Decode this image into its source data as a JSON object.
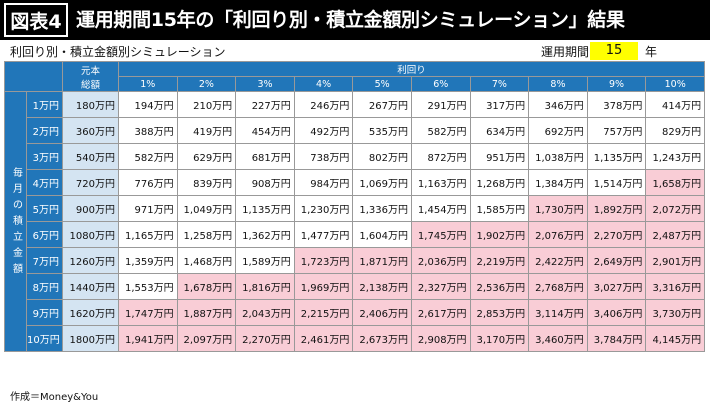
{
  "header": {
    "figure_label": "図表4",
    "title": "運用期間15年の「利回り別・積立金額別シミュレーション」結果"
  },
  "subtitle": "利回り別・積立金額別シミュレーション",
  "period": {
    "label": "運用期間",
    "value": "15",
    "unit": "年"
  },
  "table": {
    "principal_header": "元本総額",
    "principal_header_line1": "元本",
    "principal_header_line2": "総額",
    "rate_group_header": "利回り",
    "side_label": "毎月の積立金額",
    "side_label_chars": [
      "毎",
      "月",
      "の",
      "積",
      "立",
      "金",
      "額"
    ],
    "rates": [
      "1%",
      "2%",
      "3%",
      "4%",
      "5%",
      "6%",
      "7%",
      "8%",
      "9%",
      "10%"
    ],
    "highlight_color": "#f9cdd6",
    "header_color": "#2176b9",
    "rows": [
      {
        "monthly": "1万円",
        "principal": "180万円",
        "values": [
          "194万円",
          "210万円",
          "227万円",
          "246万円",
          "267万円",
          "291万円",
          "317万円",
          "346万円",
          "378万円",
          "414万円"
        ],
        "highlighted": [
          false,
          false,
          false,
          false,
          false,
          false,
          false,
          false,
          false,
          false
        ]
      },
      {
        "monthly": "2万円",
        "principal": "360万円",
        "values": [
          "388万円",
          "419万円",
          "454万円",
          "492万円",
          "535万円",
          "582万円",
          "634万円",
          "692万円",
          "757万円",
          "829万円"
        ],
        "highlighted": [
          false,
          false,
          false,
          false,
          false,
          false,
          false,
          false,
          false,
          false
        ]
      },
      {
        "monthly": "3万円",
        "principal": "540万円",
        "values": [
          "582万円",
          "629万円",
          "681万円",
          "738万円",
          "802万円",
          "872万円",
          "951万円",
          "1,038万円",
          "1,135万円",
          "1,243万円"
        ],
        "highlighted": [
          false,
          false,
          false,
          false,
          false,
          false,
          false,
          false,
          false,
          false
        ]
      },
      {
        "monthly": "4万円",
        "principal": "720万円",
        "values": [
          "776万円",
          "839万円",
          "908万円",
          "984万円",
          "1,069万円",
          "1,163万円",
          "1,268万円",
          "1,384万円",
          "1,514万円",
          "1,658万円"
        ],
        "highlighted": [
          false,
          false,
          false,
          false,
          false,
          false,
          false,
          false,
          false,
          true
        ]
      },
      {
        "monthly": "5万円",
        "principal": "900万円",
        "values": [
          "971万円",
          "1,049万円",
          "1,135万円",
          "1,230万円",
          "1,336万円",
          "1,454万円",
          "1,585万円",
          "1,730万円",
          "1,892万円",
          "2,072万円"
        ],
        "highlighted": [
          false,
          false,
          false,
          false,
          false,
          false,
          false,
          true,
          true,
          true
        ]
      },
      {
        "monthly": "6万円",
        "principal": "1080万円",
        "values": [
          "1,165万円",
          "1,258万円",
          "1,362万円",
          "1,477万円",
          "1,604万円",
          "1,745万円",
          "1,902万円",
          "2,076万円",
          "2,270万円",
          "2,487万円"
        ],
        "highlighted": [
          false,
          false,
          false,
          false,
          false,
          true,
          true,
          true,
          true,
          true
        ]
      },
      {
        "monthly": "7万円",
        "principal": "1260万円",
        "values": [
          "1,359万円",
          "1,468万円",
          "1,589万円",
          "1,723万円",
          "1,871万円",
          "2,036万円",
          "2,219万円",
          "2,422万円",
          "2,649万円",
          "2,901万円"
        ],
        "highlighted": [
          false,
          false,
          false,
          true,
          true,
          true,
          true,
          true,
          true,
          true
        ]
      },
      {
        "monthly": "8万円",
        "principal": "1440万円",
        "values": [
          "1,553万円",
          "1,678万円",
          "1,816万円",
          "1,969万円",
          "2,138万円",
          "2,327万円",
          "2,536万円",
          "2,768万円",
          "3,027万円",
          "3,316万円"
        ],
        "highlighted": [
          false,
          true,
          true,
          true,
          true,
          true,
          true,
          true,
          true,
          true
        ]
      },
      {
        "monthly": "9万円",
        "principal": "1620万円",
        "values": [
          "1,747万円",
          "1,887万円",
          "2,043万円",
          "2,215万円",
          "2,406万円",
          "2,617万円",
          "2,853万円",
          "3,114万円",
          "3,406万円",
          "3,730万円"
        ],
        "highlighted": [
          true,
          true,
          true,
          true,
          true,
          true,
          true,
          true,
          true,
          true
        ]
      },
      {
        "monthly": "10万円",
        "principal": "1800万円",
        "values": [
          "1,941万円",
          "2,097万円",
          "2,270万円",
          "2,461万円",
          "2,673万円",
          "2,908万円",
          "3,170万円",
          "3,460万円",
          "3,784万円",
          "4,145万円"
        ],
        "highlighted": [
          true,
          true,
          true,
          true,
          true,
          true,
          true,
          true,
          true,
          true
        ]
      }
    ]
  },
  "footer": "作成＝Money&You"
}
